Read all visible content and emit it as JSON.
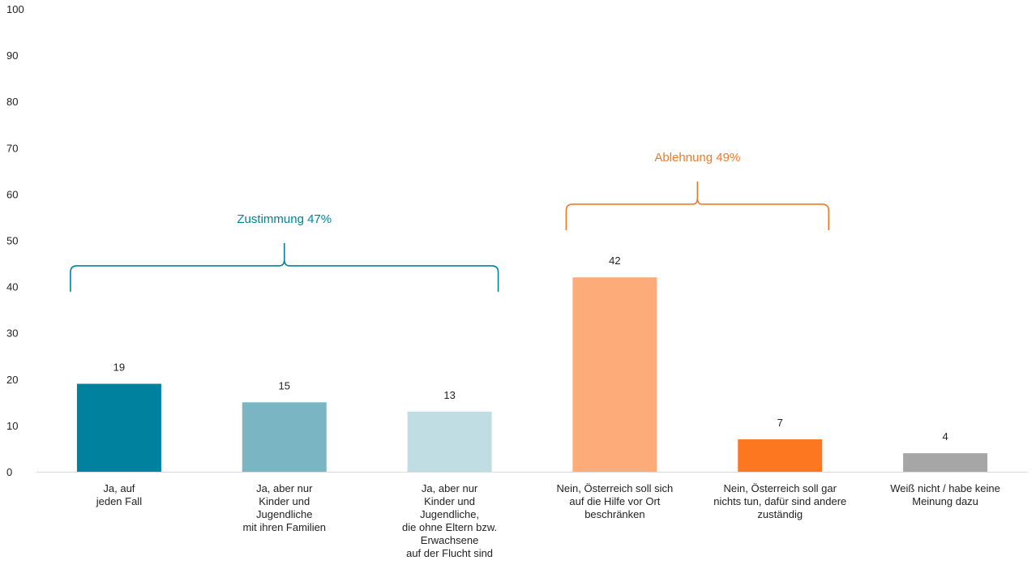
{
  "chart_data": {
    "type": "bar",
    "title": "",
    "xlabel": "",
    "ylabel": "",
    "ylim": [
      0,
      100
    ],
    "yticks": [
      0,
      10,
      20,
      30,
      40,
      50,
      60,
      70,
      80,
      90,
      100
    ],
    "categories": [
      [
        "Ja, auf",
        "jeden Fall"
      ],
      [
        "Ja, aber nur",
        "Kinder und",
        "Jugendliche",
        "mit ihren Familien"
      ],
      [
        "Ja, aber nur",
        "Kinder und",
        "Jugendliche,",
        "die ohne Eltern bzw.",
        "Erwachsene",
        "auf der Flucht sind"
      ],
      [
        "Nein, Österreich soll sich",
        "auf die Hilfe vor Ort",
        "beschränken"
      ],
      [
        "Nein, Österreich soll gar",
        "nichts tun, dafür sind andere",
        "zuständig"
      ],
      [
        "Weiß nicht / habe keine",
        "Meinung dazu"
      ]
    ],
    "values": [
      19,
      15,
      13,
      42,
      7,
      4
    ],
    "colors": [
      "#00819e",
      "#7ab5c4",
      "#c0dde3",
      "#fdab78",
      "#fd7620",
      "#a6a6a6"
    ],
    "grid": false,
    "groups": [
      {
        "label": "Zustimmung 47%",
        "from": 0,
        "to": 2,
        "level": 44.5,
        "color": "#00819e"
      },
      {
        "label": "Ablehnung 49%",
        "from": 3,
        "to": 4,
        "level": 57.8,
        "color": "#f07a28"
      }
    ]
  }
}
